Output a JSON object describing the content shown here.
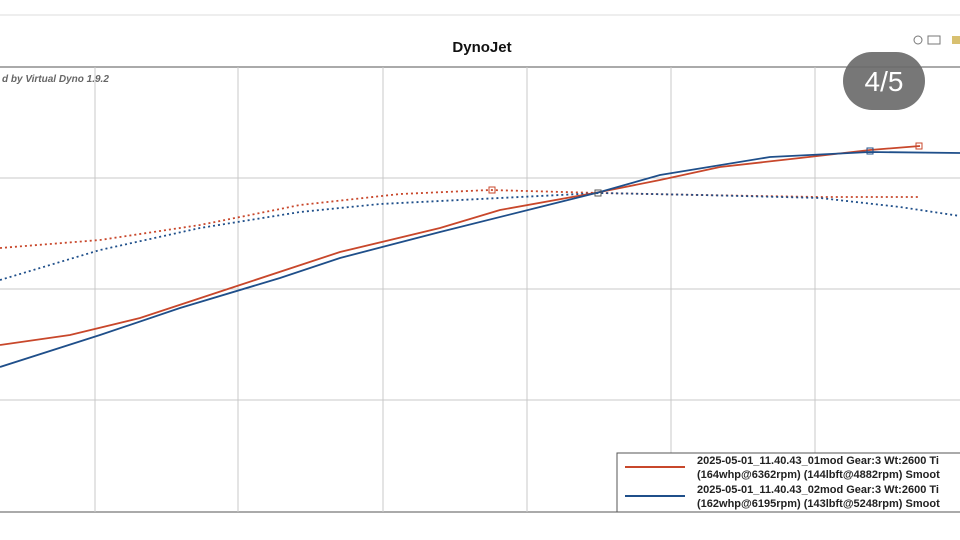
{
  "header": {
    "title": "DynoJet",
    "watermark": "d by Virtual Dyno 1.9.2"
  },
  "badge": "4/5",
  "legend": {
    "entries": [
      {
        "line1": "2025-05-01_11.40.43_01mod Gear:3 Wt:2600 Ti",
        "line2": "(164whp@6362rpm) (144lbft@4882rpm) Smoot"
      },
      {
        "line1": "2025-05-01_11.40.43_02mod Gear:3 Wt:2600 Ti",
        "line2": "(162whp@6195rpm) (143lbft@5248rpm) Smoot"
      }
    ]
  }
}
